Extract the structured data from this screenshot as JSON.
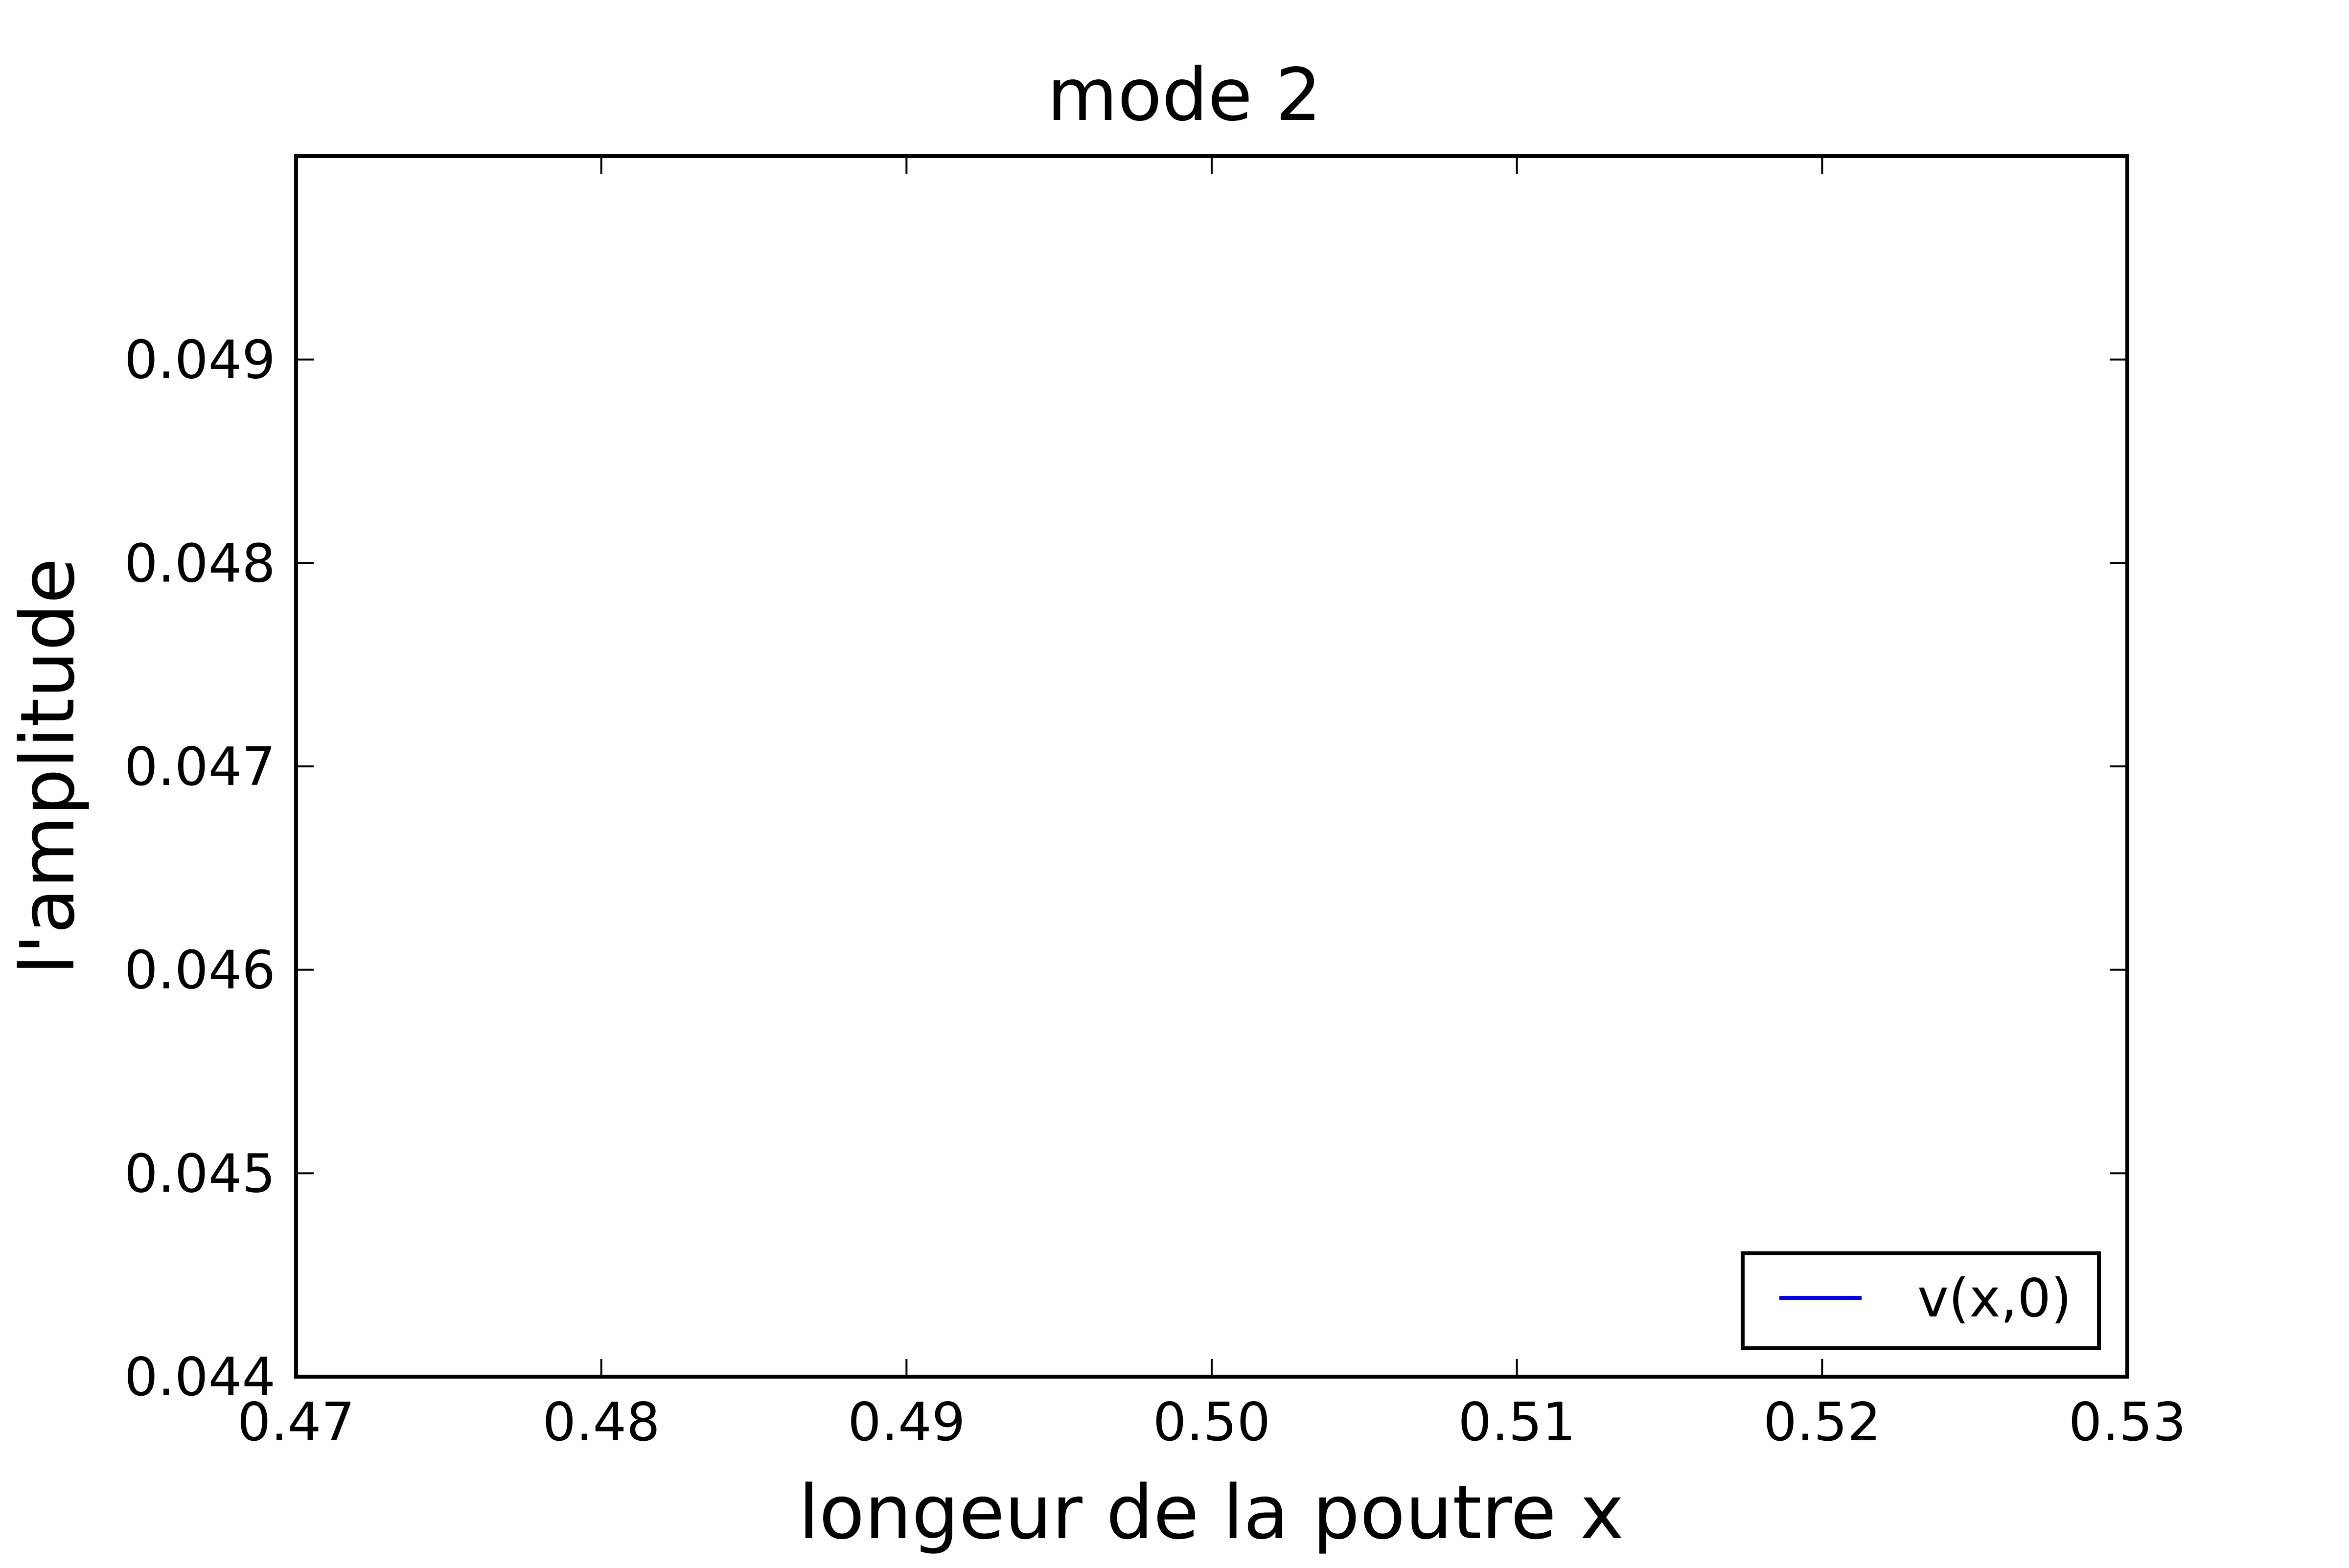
{
  "chart_data": {
    "type": "line",
    "title": "mode 2",
    "xlabel": "longeur de la poutre  x",
    "ylabel": "l'amplitude",
    "xlim": [
      0.47,
      0.53
    ],
    "ylim": [
      0.044,
      0.05
    ],
    "xticks": [
      "0.47",
      "0.48",
      "0.49",
      "0.50",
      "0.51",
      "0.52",
      "0.53"
    ],
    "yticks": [
      "0.044",
      "0.045",
      "0.046",
      "0.047",
      "0.048",
      "0.049"
    ],
    "grid": false,
    "legend_position": "lower-right",
    "series": [
      {
        "name": "v(x,0)",
        "color": "#0000ff",
        "x": [],
        "y": []
      }
    ]
  }
}
